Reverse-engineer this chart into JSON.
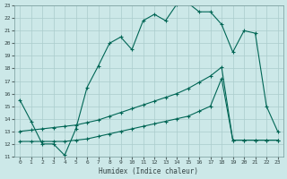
{
  "xlabel": "Humidex (Indice chaleur)",
  "bg_color": "#cce8e8",
  "grid_color": "#aacccc",
  "line_color": "#006655",
  "xlim": [
    -0.5,
    23.5
  ],
  "ylim": [
    11,
    23
  ],
  "xticks": [
    0,
    1,
    2,
    3,
    4,
    5,
    6,
    7,
    8,
    9,
    10,
    11,
    12,
    13,
    14,
    15,
    16,
    17,
    18,
    19,
    20,
    21,
    22,
    23
  ],
  "yticks": [
    11,
    12,
    13,
    14,
    15,
    16,
    17,
    18,
    19,
    20,
    21,
    22,
    23
  ],
  "line1_x": [
    0,
    1,
    2,
    3,
    4,
    5,
    6,
    7,
    8,
    9,
    10,
    11,
    12,
    13,
    14,
    15,
    16,
    17,
    18,
    19,
    20,
    21,
    22,
    23
  ],
  "line1_y": [
    15.5,
    13.8,
    12.0,
    12.0,
    11.1,
    13.2,
    16.5,
    18.2,
    20.0,
    20.5,
    19.5,
    21.8,
    22.3,
    21.8,
    23.1,
    23.2,
    22.5,
    22.5,
    21.5,
    19.3,
    21.0,
    20.8,
    15.0,
    13.0
  ],
  "line2_x": [
    0,
    1,
    2,
    3,
    4,
    5,
    6,
    7,
    8,
    9,
    10,
    11,
    12,
    13,
    14,
    15,
    16,
    17,
    18,
    19,
    20,
    21,
    22,
    23
  ],
  "line2_y": [
    13.0,
    13.1,
    13.2,
    13.3,
    13.4,
    13.5,
    13.7,
    13.9,
    14.2,
    14.5,
    14.8,
    15.1,
    15.4,
    15.7,
    16.0,
    16.4,
    16.9,
    17.4,
    18.1,
    12.3,
    12.3,
    12.3,
    12.3,
    12.3
  ],
  "line3_x": [
    0,
    1,
    2,
    3,
    4,
    5,
    6,
    7,
    8,
    9,
    10,
    11,
    12,
    13,
    14,
    15,
    16,
    17,
    18,
    19,
    20,
    21,
    22,
    23
  ],
  "line3_y": [
    12.2,
    12.2,
    12.2,
    12.2,
    12.2,
    12.3,
    12.4,
    12.6,
    12.8,
    13.0,
    13.2,
    13.4,
    13.6,
    13.8,
    14.0,
    14.2,
    14.6,
    15.0,
    17.2,
    12.3,
    12.3,
    12.3,
    12.3,
    12.3
  ]
}
